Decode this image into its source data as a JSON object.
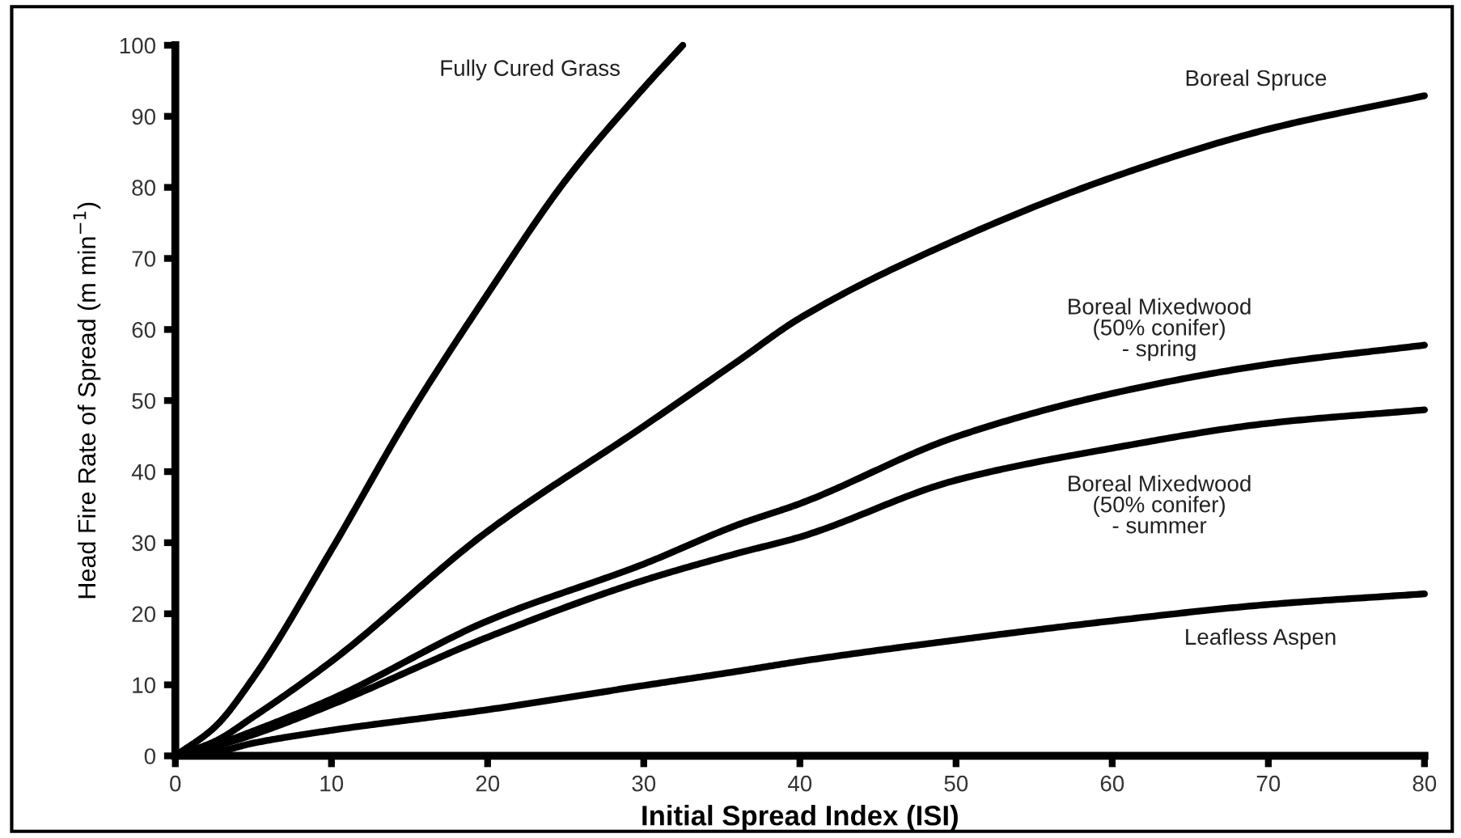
{
  "chart_data": {
    "type": "line",
    "xlabel": "Initial Spread Index (ISI)",
    "ylabel": "Head Fire Rate of Spread (m min$^{−1}$)",
    "xlim": [
      0,
      80
    ],
    "ylim": [
      0,
      100
    ],
    "xticks": [
      0,
      10,
      20,
      30,
      40,
      50,
      60,
      70,
      80
    ],
    "yticks": [
      0,
      10,
      20,
      30,
      40,
      50,
      60,
      70,
      80,
      90,
      100
    ],
    "grid": false,
    "legend": false,
    "marker": "none",
    "line_style": "solid",
    "series": [
      {
        "name": "Fully Cured Grass",
        "color": "#000000",
        "x": [
          0,
          2.5,
          5,
          10,
          15,
          20,
          25,
          30,
          32.5
        ],
        "values": [
          0,
          4,
          11,
          29,
          48,
          65,
          81,
          94,
          100
        ]
      },
      {
        "name": "Boreal Spruce",
        "color": "#000000",
        "x": [
          0,
          2.5,
          5,
          10,
          20,
          30,
          36,
          40,
          50,
          60,
          70,
          80
        ],
        "values": [
          0,
          2,
          5.5,
          13.3,
          31.6,
          46.4,
          55.5,
          61.6,
          72.6,
          81.4,
          88.2,
          92.9
        ]
      },
      {
        "name": "Boreal Mixedwood\n(50% conifer)\n- spring",
        "color": "#000000",
        "x": [
          0,
          2.5,
          5,
          10,
          20,
          30,
          36,
          40,
          50,
          60,
          70,
          80
        ],
        "values": [
          0,
          1.5,
          3.5,
          8.0,
          19.0,
          27.0,
          32.5,
          35.5,
          44.9,
          51.0,
          55.1,
          57.8
        ]
      },
      {
        "name": "Boreal Mixedwood\n(50% conifer)\n- summer",
        "color": "#000000",
        "x": [
          0,
          2.5,
          5,
          10,
          20,
          30,
          36,
          40,
          50,
          60,
          70,
          80
        ],
        "values": [
          0,
          1.3,
          3.0,
          7.2,
          16.7,
          24.7,
          28.5,
          30.8,
          38.8,
          43.3,
          46.8,
          48.7
        ]
      },
      {
        "name": "Leafless Aspen",
        "color": "#000000",
        "x": [
          0,
          2.5,
          5,
          10,
          20,
          30,
          36,
          40,
          50,
          60,
          70,
          80
        ],
        "values": [
          0,
          0.5,
          1.8,
          3.6,
          6.5,
          9.9,
          11.9,
          13.3,
          16.3,
          19.0,
          21.3,
          22.8
        ]
      }
    ]
  }
}
